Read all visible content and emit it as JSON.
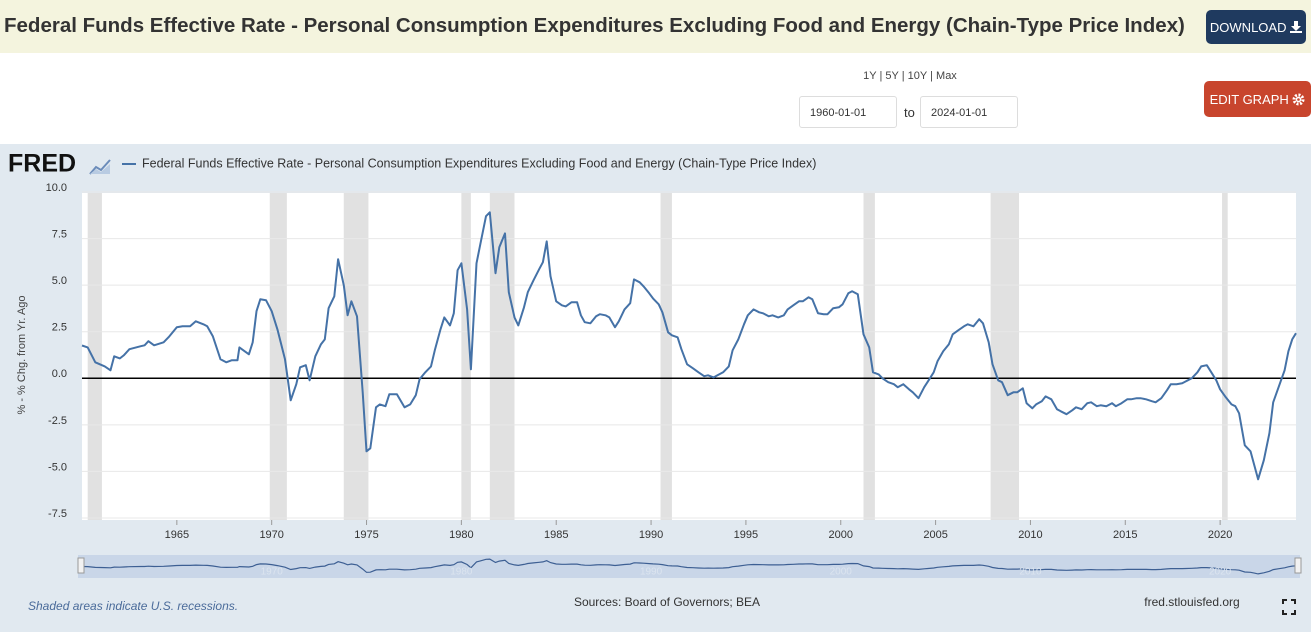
{
  "header": {
    "title": "Federal Funds Effective Rate - Personal Consumption Expenditures Excluding Food and Energy (Chain-Type Price Index)",
    "download": "DOWNLOAD"
  },
  "controls": {
    "ranges": [
      "1Y",
      "5Y",
      "10Y",
      "Max"
    ],
    "start": "1960-01-01",
    "to": "to",
    "end": "2024-01-01",
    "edit": "EDIT GRAPH"
  },
  "chart_data": {
    "type": "line",
    "logo": "FRED",
    "ylabel": "% - % Chg. from Yr. Ago",
    "x": [
      1960.0,
      1960.3,
      1960.7,
      1961.2,
      1961.5,
      1961.7,
      1962.0,
      1962.2,
      1962.5,
      1963.1,
      1963.3,
      1963.5,
      1963.8,
      1964.3,
      1964.6,
      1965.0,
      1965.3,
      1965.7,
      1966.0,
      1966.4,
      1966.6,
      1966.9,
      1967.3,
      1967.6,
      1967.9,
      1968.2,
      1968.3,
      1968.8,
      1969.0,
      1969.2,
      1969.4,
      1969.7,
      1970.0,
      1970.3,
      1970.7,
      1971.0,
      1971.3,
      1971.5,
      1971.8,
      1972.0,
      1972.3,
      1972.6,
      1972.8,
      1973.0,
      1973.3,
      1973.5,
      1973.8,
      1974.0,
      1974.2,
      1974.5,
      1974.8,
      1975.0,
      1975.2,
      1975.5,
      1975.7,
      1976.0,
      1976.2,
      1976.6,
      1977.0,
      1977.3,
      1977.6,
      1977.8,
      1978.1,
      1978.4,
      1978.6,
      1978.9,
      1979.1,
      1979.4,
      1979.6,
      1979.8,
      1980.0,
      1980.3,
      1980.5,
      1980.8,
      1981.0,
      1981.3,
      1981.5,
      1981.8,
      1982.0,
      1982.3,
      1982.5,
      1982.8,
      1983.0,
      1983.3,
      1983.5,
      1983.8,
      1984.1,
      1984.3,
      1984.5,
      1984.7,
      1985.0,
      1985.3,
      1985.5,
      1985.8,
      1986.1,
      1986.3,
      1986.5,
      1986.8,
      1987.1,
      1987.3,
      1987.6,
      1987.8,
      1988.1,
      1988.3,
      1988.6,
      1988.9,
      1989.1,
      1989.4,
      1989.6,
      1989.9,
      1990.1,
      1990.4,
      1990.6,
      1990.9,
      1991.1,
      1991.4,
      1991.6,
      1991.9,
      1992.2,
      1992.5,
      1992.8,
      1993.0,
      1993.3,
      1993.5,
      1993.8,
      1994.1,
      1994.3,
      1994.6,
      1994.9,
      1995.1,
      1995.4,
      1995.7,
      1995.9,
      1996.2,
      1996.4,
      1996.7,
      1997.0,
      1997.2,
      1997.5,
      1997.8,
      1998.0,
      1998.3,
      1998.5,
      1998.8,
      1999.1,
      1999.3,
      1999.6,
      1999.9,
      2000.1,
      2000.4,
      2000.6,
      2000.9,
      2001.2,
      2001.5,
      2001.7,
      2002.0,
      2002.2,
      2002.5,
      2002.8,
      2003.0,
      2003.3,
      2003.6,
      2003.8,
      2004.1,
      2004.4,
      2004.6,
      2004.9,
      2005.1,
      2005.4,
      2005.7,
      2005.9,
      2006.2,
      2006.5,
      2006.7,
      2007.0,
      2007.3,
      2007.5,
      2007.8,
      2008.0,
      2008.3,
      2008.5,
      2008.8,
      2009.1,
      2009.3,
      2009.6,
      2009.8,
      2010.1,
      2010.3,
      2010.6,
      2010.8,
      2011.1,
      2011.4,
      2011.6,
      2011.9,
      2012.2,
      2012.4,
      2012.7,
      2013.0,
      2013.2,
      2013.5,
      2013.7,
      2014.0,
      2014.3,
      2014.5,
      2014.8,
      2015.1,
      2015.3,
      2015.6,
      2015.8,
      2016.1,
      2016.4,
      2016.6,
      2016.9,
      2017.2,
      2017.4,
      2017.7,
      2018.0,
      2018.2,
      2018.5,
      2018.8,
      2019.0,
      2019.3,
      2019.5,
      2019.8,
      2020.0,
      2020.3,
      2020.6,
      2020.8,
      2021.0,
      2021.3,
      2021.6,
      2021.8,
      2022.0,
      2022.3,
      2022.6,
      2022.8,
      2023.1,
      2023.4,
      2023.6,
      2023.8,
      2024.0
    ],
    "series": [
      {
        "name": "Federal Funds Effective Rate - Personal Consumption Expenditures Excluding Food and Energy (Chain-Type Price Index)",
        "color": "#4572a7",
        "values": [
          1.76,
          1.66,
          0.86,
          0.64,
          0.43,
          1.18,
          1.07,
          1.23,
          1.56,
          1.72,
          1.77,
          1.99,
          1.77,
          1.93,
          2.25,
          2.74,
          2.79,
          2.79,
          3.06,
          2.9,
          2.79,
          2.25,
          1.02,
          0.86,
          0.97,
          0.97,
          1.66,
          1.29,
          1.93,
          3.6,
          4.24,
          4.19,
          3.6,
          2.63,
          1.02,
          -1.18,
          -0.32,
          0.59,
          0.7,
          -0.11,
          1.18,
          1.83,
          2.09,
          3.76,
          4.4,
          6.39,
          4.99,
          3.38,
          4.13,
          3.33,
          -0.75,
          -3.92,
          -3.76,
          -1.56,
          -1.4,
          -1.5,
          -0.86,
          -0.86,
          -1.56,
          -1.4,
          -0.91,
          -0.05,
          0.32,
          0.64,
          1.5,
          2.63,
          3.27,
          2.84,
          3.49,
          5.8,
          6.17,
          3.7,
          0.48,
          6.17,
          7.19,
          8.7,
          8.91,
          5.64,
          7.03,
          7.78,
          4.62,
          3.27,
          2.84,
          3.81,
          4.62,
          5.26,
          5.85,
          6.23,
          7.35,
          5.48,
          4.13,
          3.92,
          3.86,
          4.08,
          4.08,
          3.38,
          3.01,
          2.95,
          3.33,
          3.44,
          3.38,
          3.27,
          2.74,
          3.06,
          3.7,
          4.03,
          5.31,
          5.15,
          4.94,
          4.56,
          4.29,
          3.97,
          3.54,
          2.47,
          2.31,
          2.2,
          1.56,
          0.75,
          0.54,
          0.32,
          0.11,
          0.16,
          0.05,
          0.16,
          0.32,
          0.64,
          1.5,
          2.09,
          2.9,
          3.38,
          3.7,
          3.54,
          3.49,
          3.33,
          3.38,
          3.27,
          3.38,
          3.7,
          3.92,
          4.13,
          4.13,
          4.35,
          4.24,
          3.49,
          3.44,
          3.44,
          3.76,
          3.81,
          3.97,
          4.56,
          4.67,
          4.51,
          2.36,
          1.66,
          0.32,
          0.21,
          0,
          -0.21,
          -0.32,
          -0.48,
          -0.32,
          -0.59,
          -0.75,
          -1.07,
          -0.48,
          -0.16,
          0.32,
          0.91,
          1.45,
          1.83,
          2.36,
          2.58,
          2.79,
          2.9,
          2.79,
          3.17,
          2.95,
          1.93,
          0.75,
          -0.11,
          -0.21,
          -0.91,
          -0.75,
          -0.75,
          -0.54,
          -1.34,
          -1.61,
          -1.4,
          -1.23,
          -0.97,
          -1.13,
          -1.66,
          -1.77,
          -1.93,
          -1.72,
          -1.56,
          -1.66,
          -1.34,
          -1.29,
          -1.5,
          -1.45,
          -1.5,
          -1.34,
          -1.5,
          -1.34,
          -1.13,
          -1.13,
          -1.07,
          -1.07,
          -1.13,
          -1.23,
          -1.29,
          -1.07,
          -0.64,
          -0.32,
          -0.32,
          -0.27,
          -0.16,
          0,
          0.32,
          0.64,
          0.7,
          0.38,
          -0.11,
          -0.59,
          -1.02,
          -1.4,
          -1.5,
          -1.88,
          -3.6,
          -3.92,
          -4.67,
          -5.42,
          -4.4,
          -2.95,
          -1.29,
          -0.43,
          0.43,
          1.45,
          2.09,
          2.42
        ]
      }
    ],
    "xlim": [
      1960,
      2024
    ],
    "xticks": [
      1965,
      1970,
      1975,
      1980,
      1985,
      1990,
      1995,
      2000,
      2005,
      2010,
      2015,
      2020
    ],
    "ylim": [
      -7.5,
      10
    ],
    "yticks": [
      {
        "value": 10,
        "label": "10.0"
      },
      7.5,
      {
        "value": 5,
        "label": "5.0"
      },
      2.5,
      {
        "value": 0,
        "label": "0.0"
      },
      -2.5,
      {
        "value": -5,
        "label": "-5.0"
      },
      -7.5
    ],
    "grid": true,
    "recessions": [
      [
        1960.3,
        1961.05
      ],
      [
        1969.9,
        1970.8
      ],
      [
        1973.8,
        1975.1
      ],
      [
        1980.0,
        1980.5
      ],
      [
        1981.5,
        1982.8
      ],
      [
        1990.5,
        1991.1
      ],
      [
        2001.2,
        2001.8
      ],
      [
        2007.9,
        2009.4
      ],
      [
        2020.1,
        2020.4
      ]
    ],
    "navigator_xticks": [
      1970,
      1980,
      1990,
      2000,
      2010,
      2020
    ]
  },
  "footer": {
    "note": "Shaded areas indicate U.S. recessions.",
    "sources": "Sources: Board of Governors; BEA",
    "site": "fred.stlouisfed.org"
  }
}
